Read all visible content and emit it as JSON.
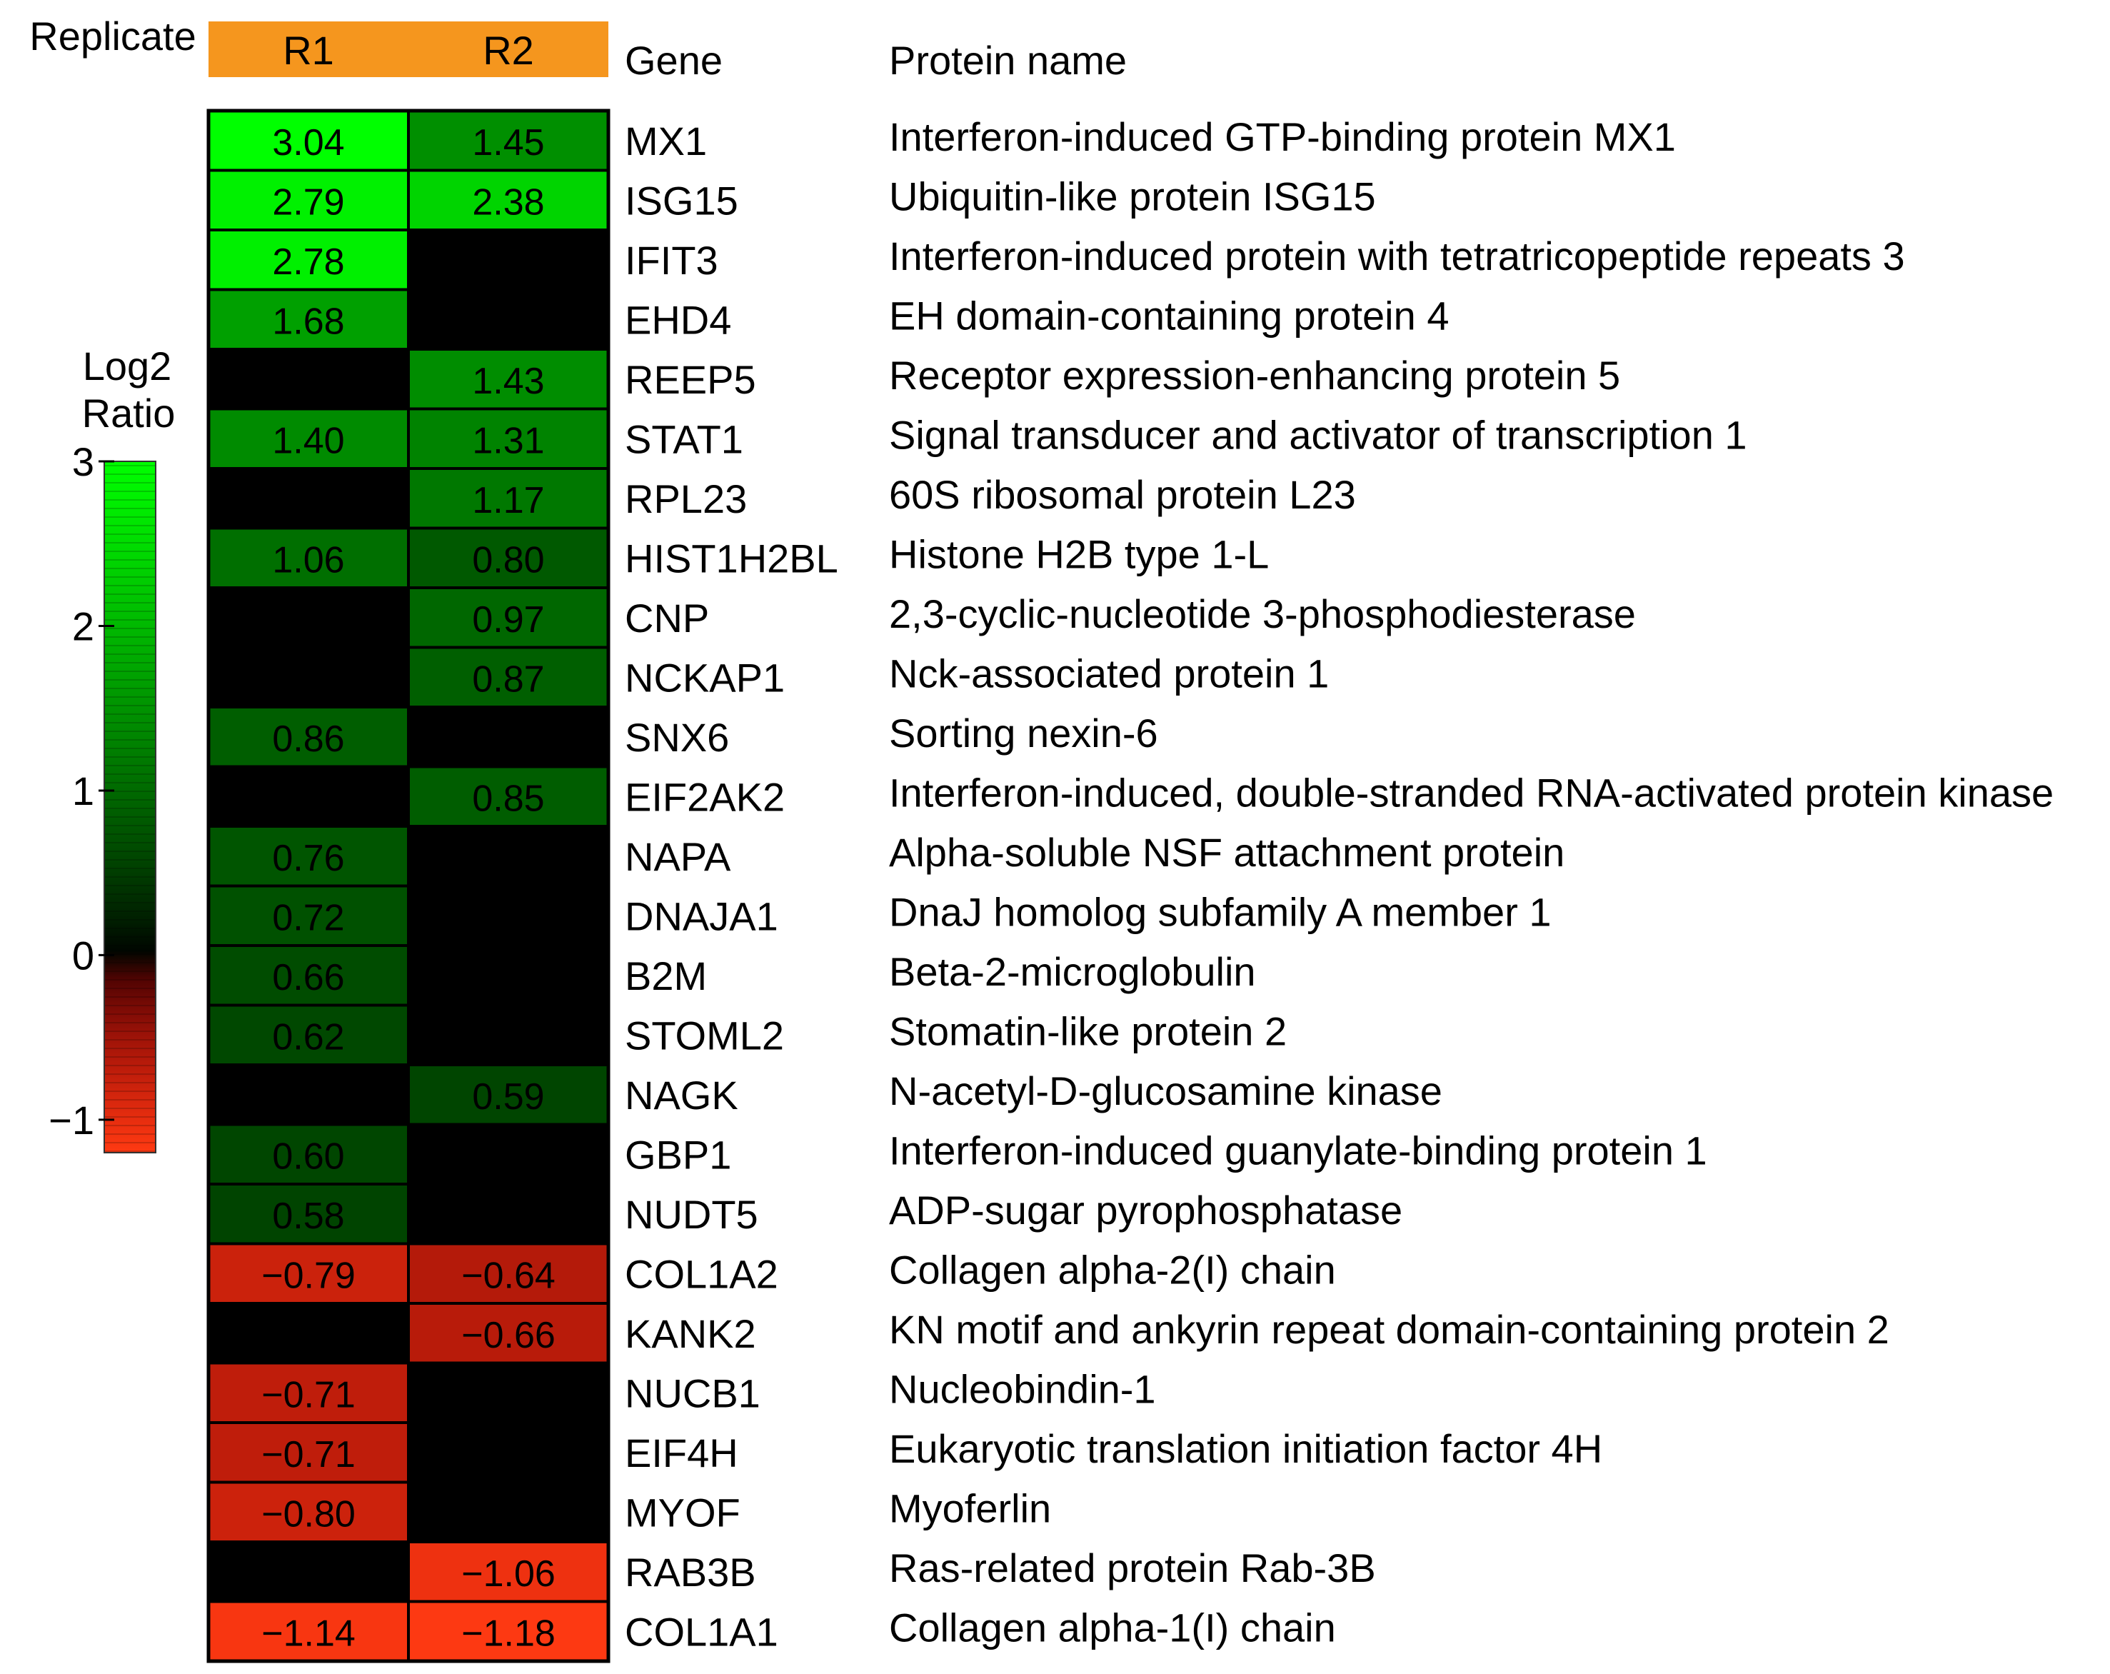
{
  "chart_data": {
    "type": "heatmap",
    "title": "",
    "header_label": "Replicate",
    "columns": [
      "R1",
      "R2"
    ],
    "gene_header": "Gene",
    "protein_header": "Protein name",
    "legend": {
      "title_line1": "Log2",
      "title_line2": "Ratio",
      "range": [
        -1.2,
        3
      ],
      "ticks": [
        3,
        2,
        1,
        0,
        -1
      ],
      "tick_labels": [
        "3",
        "2",
        "1",
        "0",
        "−1"
      ],
      "position": "left"
    },
    "colors": {
      "header": "#F5961E",
      "positive": "#00FF00",
      "negative": "#FF3A12",
      "missing": "#000000",
      "border": "#000000"
    },
    "rows": [
      {
        "gene": "MX1",
        "protein": "Interferon-induced GTP-binding protein MX1",
        "values": [
          3.04,
          1.45
        ],
        "labels": [
          "3.04",
          "1.45"
        ]
      },
      {
        "gene": "ISG15",
        "protein": "Ubiquitin-like protein ISG15",
        "values": [
          2.79,
          2.38
        ],
        "labels": [
          "2.79",
          "2.38"
        ]
      },
      {
        "gene": "IFIT3",
        "protein": "Interferon-induced protein with tetratricopeptide repeats 3",
        "values": [
          2.78,
          null
        ],
        "labels": [
          "2.78",
          ""
        ]
      },
      {
        "gene": "EHD4",
        "protein": "EH domain-containing protein 4",
        "values": [
          1.68,
          null
        ],
        "labels": [
          "1.68",
          ""
        ]
      },
      {
        "gene": "REEP5",
        "protein": "Receptor expression-enhancing protein 5",
        "values": [
          null,
          1.43
        ],
        "labels": [
          "",
          "1.43"
        ]
      },
      {
        "gene": "STAT1",
        "protein": "Signal transducer and activator of transcription 1",
        "values": [
          1.4,
          1.31
        ],
        "labels": [
          "1.40",
          "1.31"
        ]
      },
      {
        "gene": "RPL23",
        "protein": "60S ribosomal protein L23",
        "values": [
          null,
          1.17
        ],
        "labels": [
          "",
          "1.17"
        ]
      },
      {
        "gene": "HIST1H2BL",
        "protein": "Histone H2B type 1-L",
        "values": [
          1.06,
          0.8
        ],
        "labels": [
          "1.06",
          "0.80"
        ]
      },
      {
        "gene": "CNP",
        "protein": "2,3-cyclic-nucleotide 3-phosphodiesterase",
        "values": [
          null,
          0.97
        ],
        "labels": [
          "",
          "0.97"
        ]
      },
      {
        "gene": "NCKAP1",
        "protein": "Nck-associated protein 1",
        "values": [
          null,
          0.87
        ],
        "labels": [
          "",
          "0.87"
        ]
      },
      {
        "gene": "SNX6",
        "protein": "Sorting nexin-6",
        "values": [
          0.86,
          null
        ],
        "labels": [
          "0.86",
          ""
        ]
      },
      {
        "gene": "EIF2AK2",
        "protein": "Interferon-induced, double-stranded RNA-activated protein kinase",
        "values": [
          null,
          0.85
        ],
        "labels": [
          "",
          "0.85"
        ]
      },
      {
        "gene": "NAPA",
        "protein": "Alpha-soluble NSF attachment protein",
        "values": [
          0.76,
          null
        ],
        "labels": [
          "0.76",
          ""
        ]
      },
      {
        "gene": "DNAJA1",
        "protein": "DnaJ homolog subfamily A member 1",
        "values": [
          0.72,
          null
        ],
        "labels": [
          "0.72",
          ""
        ]
      },
      {
        "gene": "B2M",
        "protein": "Beta-2-microglobulin",
        "values": [
          0.66,
          null
        ],
        "labels": [
          "0.66",
          ""
        ]
      },
      {
        "gene": "STOML2",
        "protein": "Stomatin-like protein 2",
        "values": [
          0.62,
          null
        ],
        "labels": [
          "0.62",
          ""
        ]
      },
      {
        "gene": "NAGK",
        "protein": "N-acetyl-D-glucosamine kinase",
        "values": [
          null,
          0.59
        ],
        "labels": [
          "",
          "0.59"
        ]
      },
      {
        "gene": "GBP1",
        "protein": "Interferon-induced guanylate-binding protein 1",
        "values": [
          0.6,
          null
        ],
        "labels": [
          "0.60",
          ""
        ]
      },
      {
        "gene": "NUDT5",
        "protein": "ADP-sugar pyrophosphatase",
        "values": [
          0.58,
          null
        ],
        "labels": [
          "0.58",
          ""
        ]
      },
      {
        "gene": "COL1A2",
        "protein": "Collagen alpha-2(I) chain",
        "values": [
          -0.79,
          -0.64
        ],
        "labels": [
          "−0.79",
          "−0.64"
        ]
      },
      {
        "gene": "KANK2",
        "protein": "KN motif and ankyrin repeat domain-containing protein 2",
        "values": [
          null,
          -0.66
        ],
        "labels": [
          "",
          "−0.66"
        ]
      },
      {
        "gene": "NUCB1",
        "protein": "Nucleobindin-1",
        "values": [
          -0.71,
          null
        ],
        "labels": [
          "−0.71",
          ""
        ]
      },
      {
        "gene": "EIF4H",
        "protein": "Eukaryotic translation initiation factor 4H",
        "values": [
          -0.71,
          null
        ],
        "labels": [
          "−0.71",
          ""
        ]
      },
      {
        "gene": "MYOF",
        "protein": "Myoferlin",
        "values": [
          -0.8,
          null
        ],
        "labels": [
          "−0.80",
          ""
        ]
      },
      {
        "gene": "RAB3B",
        "protein": "Ras-related protein Rab-3B",
        "values": [
          null,
          -1.06
        ],
        "labels": [
          "",
          "−1.06"
        ]
      },
      {
        "gene": "COL1A1",
        "protein": "Collagen alpha-1(I) chain",
        "values": [
          -1.14,
          -1.18
        ],
        "labels": [
          "−1.14",
          "−1.18"
        ]
      }
    ]
  }
}
